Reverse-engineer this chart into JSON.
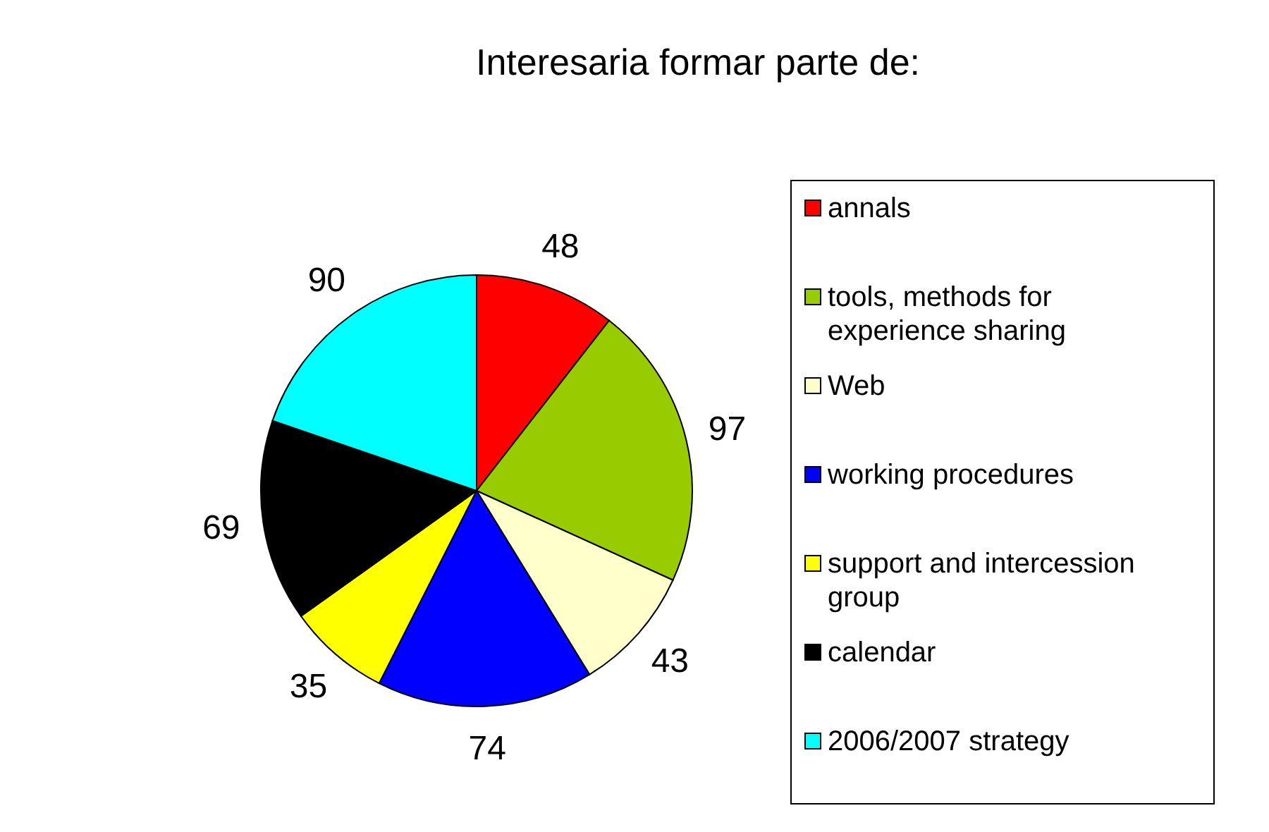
{
  "chart_data": {
    "type": "pie",
    "title": "Interesaria formar parte de:",
    "categories": [
      "annals",
      "tools, methods for experience sharing",
      "Web",
      "working procedures",
      "support and intercession group",
      "calendar",
      "2006/2007 strategy"
    ],
    "values": [
      48,
      97,
      43,
      74,
      35,
      69,
      90
    ],
    "colors": [
      "#ff0000",
      "#99cc00",
      "#ffffcc",
      "#0000ff",
      "#ffff00",
      "#000000",
      "#00ffff"
    ],
    "data_labels": true,
    "legend": "right"
  }
}
